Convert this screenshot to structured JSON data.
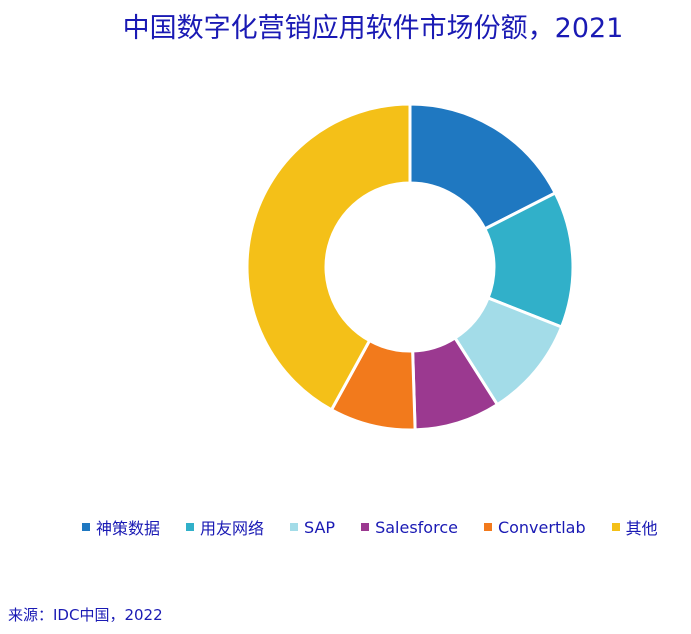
{
  "chart_data": {
    "type": "pie",
    "donut": true,
    "title": "中国数字化营销应用软件市场份额，2021",
    "categories": [
      "神策数据",
      "用友网络",
      "SAP",
      "Salesforce",
      "Convertlab",
      "其他"
    ],
    "values": [
      17.5,
      13.5,
      10.0,
      8.5,
      8.5,
      42.0
    ],
    "colors": [
      "#1f78c1",
      "#31b0c9",
      "#a3dce8",
      "#9b3990",
      "#f27a1c",
      "#f4c018"
    ],
    "legend_position": "bottom"
  },
  "source": "来源：IDC中国，2022"
}
